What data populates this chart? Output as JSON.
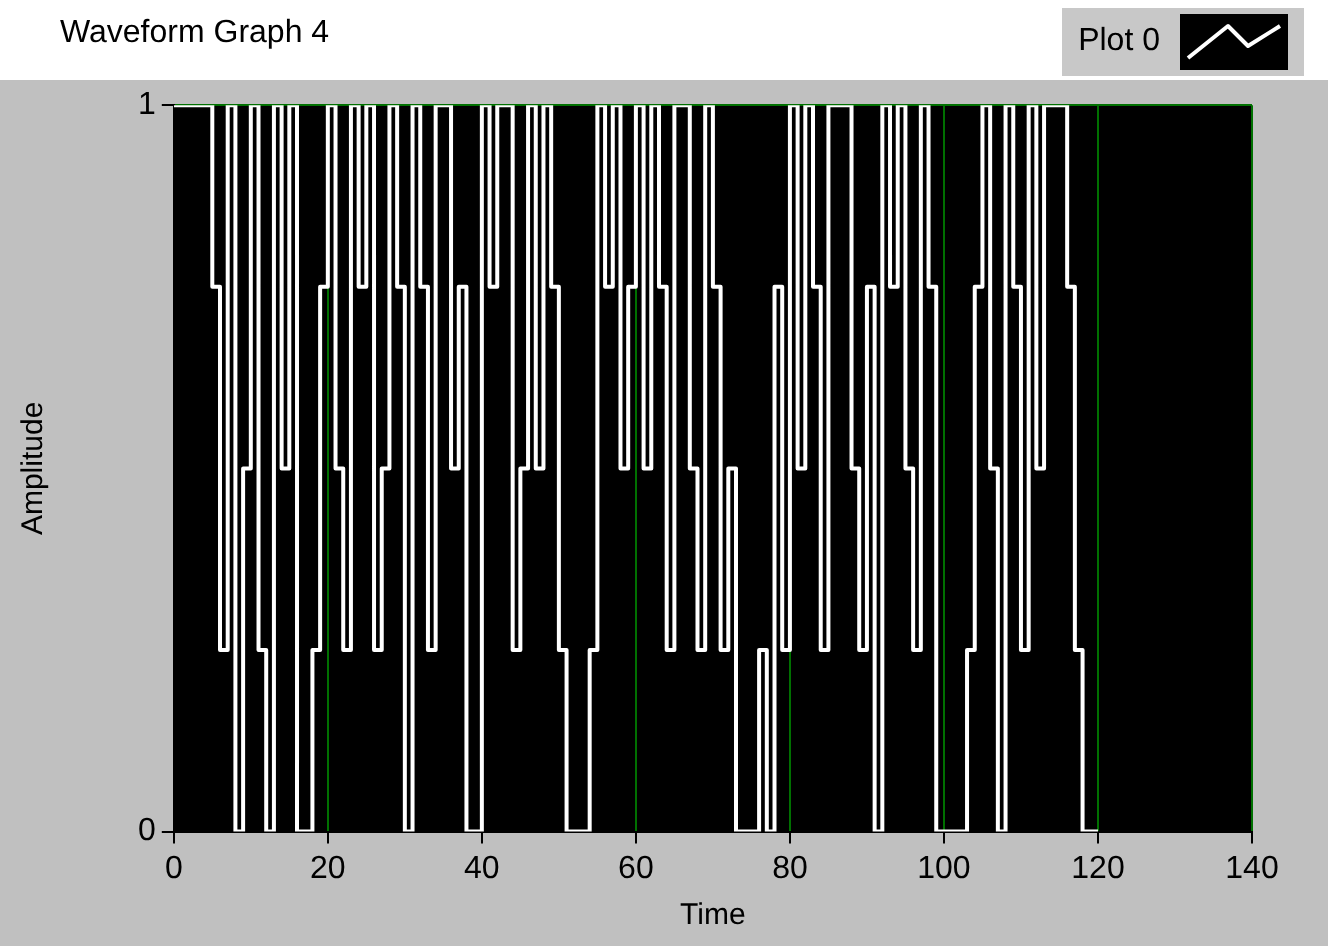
{
  "chart_data": {
    "type": "step",
    "title": "Waveform Graph 4",
    "xlabel": "Time",
    "ylabel": "Amplitude",
    "x": [
      0,
      1,
      2,
      3,
      4,
      5,
      6,
      7,
      8,
      9,
      10,
      11,
      12,
      13,
      14,
      15,
      16,
      17,
      18,
      19,
      20,
      21,
      22,
      23,
      24,
      25,
      26,
      27,
      28,
      29,
      30,
      31,
      32,
      33,
      34,
      35,
      36,
      37,
      38,
      39,
      40,
      41,
      42,
      43,
      44,
      45,
      46,
      47,
      48,
      49,
      50,
      51,
      52,
      53,
      54,
      55,
      56,
      57,
      58,
      59,
      60,
      61,
      62,
      63,
      64,
      65,
      66,
      67,
      68,
      69,
      70,
      71,
      72,
      73,
      74,
      75,
      76,
      77,
      78,
      79,
      80,
      81,
      82,
      83,
      84,
      85,
      86,
      87,
      88,
      89,
      90,
      91,
      92,
      93,
      94,
      95,
      96,
      97,
      98,
      99,
      100,
      101,
      102,
      103,
      104,
      105,
      106,
      107,
      108,
      109,
      110,
      111,
      112,
      113,
      114,
      115,
      116,
      117,
      118,
      119,
      120
    ],
    "series": [
      {
        "name": "Plot 0",
        "color": "#ffffff",
        "values": [
          1,
          1,
          1,
          1,
          1,
          1,
          0.75,
          0.25,
          1,
          0,
          0.5,
          1,
          0.25,
          0,
          1,
          0.5,
          1,
          0,
          0,
          0.25,
          0.75,
          1,
          0.5,
          0.25,
          1,
          0.75,
          1,
          0.25,
          0.5,
          1,
          0.75,
          0,
          1,
          0.75,
          0.25,
          1,
          1,
          0.5,
          0.75,
          0,
          0,
          1,
          0.75,
          1,
          1,
          0.25,
          0.5,
          1,
          0.5,
          1,
          0.75,
          0.25,
          0,
          0,
          0,
          0.25,
          1,
          0.75,
          1,
          0.5,
          0.75,
          1,
          0.5,
          1,
          0.75,
          0.25,
          1,
          1,
          0.5,
          0.25,
          1,
          0.75,
          0.25,
          0.5,
          0,
          0,
          0,
          0.25,
          0,
          0.75,
          0.25,
          1,
          0.5,
          1,
          0.75,
          0.25,
          1,
          1,
          1,
          0.5,
          0.25,
          0.75,
          0,
          1,
          0.75,
          1,
          0.5,
          0.25,
          1,
          0.75,
          0,
          0,
          0,
          0,
          0.25,
          0.75,
          1,
          0.5,
          0,
          1,
          0.75,
          0.25,
          1,
          0.5,
          1,
          1,
          1,
          0.75,
          0.25,
          0,
          0
        ]
      }
    ],
    "xlim": [
      0,
      140
    ],
    "xticks": [
      0,
      20,
      40,
      60,
      80,
      100,
      120,
      140
    ],
    "ylim": [
      0,
      1
    ],
    "yticks": [
      0,
      1
    ],
    "grid": true,
    "legend": "top right"
  }
}
